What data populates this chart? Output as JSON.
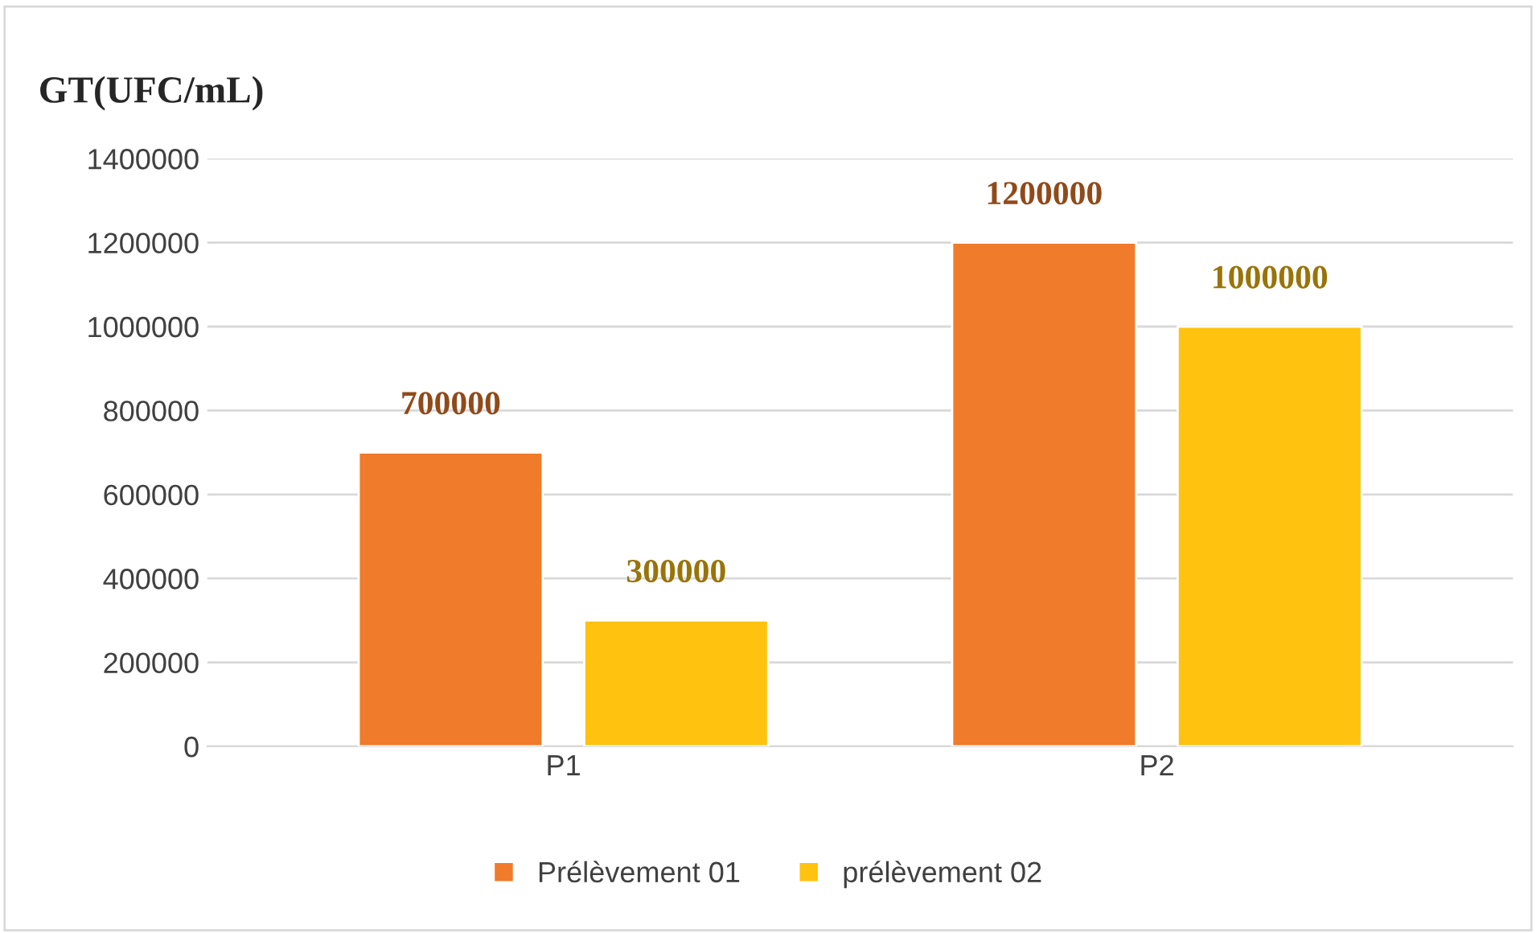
{
  "chart_data": {
    "type": "bar",
    "title": "GT(UFC/mL)",
    "categories": [
      "P1",
      "P2"
    ],
    "series": [
      {
        "name": "Prélèvement 01",
        "color": "#f07b2a",
        "values": [
          700000,
          1200000
        ]
      },
      {
        "name": "prélèvement 02",
        "color": "#ffc20e",
        "values": [
          300000,
          1000000
        ]
      }
    ],
    "ylim": [
      0,
      1400000
    ],
    "yticks": [
      0,
      200000,
      400000,
      600000,
      800000,
      1000000,
      1200000,
      1400000
    ],
    "grid": "y",
    "legend": "bottom",
    "data_labels": true
  }
}
